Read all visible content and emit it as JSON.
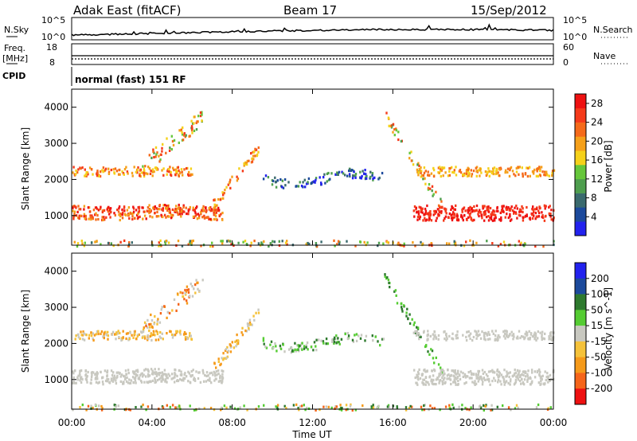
{
  "header": {
    "title": "Adak East (fitACF)",
    "beam": "Beam 17",
    "date": "15/Sep/2012"
  },
  "panels": {
    "nsky_label": "N.Sky",
    "nsky_ticks": [
      "10^5",
      "10^0"
    ],
    "nsearch_label": "N.Search",
    "freq_label": "Freq.",
    "freq_unit": "[MHz]",
    "freq_ticks": [
      "18",
      "8"
    ],
    "nave_label": "Nave",
    "nave_ticks": [
      "60",
      "0"
    ],
    "cpid_label": "CPID",
    "cpid_text": "normal (fast) 151 RF"
  },
  "colors": {
    "power": [
      "#2222ee",
      "#1c4a9c",
      "#3a6a6e",
      "#4e9e4e",
      "#66c73b",
      "#f5d11a",
      "#f5a01a",
      "#f56a1a",
      "#f53a1a",
      "#ee1111"
    ],
    "velocity": [
      "#2222ee",
      "#1c4a9c",
      "#2e7a2e",
      "#55cc33",
      "#c8c8c0",
      "#f5c23a",
      "#f59a1a",
      "#f5651a",
      "#ee1111"
    ]
  },
  "chart_data": [
    {
      "type": "heatmap",
      "name": "power",
      "ylabel": "Slant Range [km]",
      "xlabel": "Time UT",
      "x_ticks": [
        "00:00",
        "04:00",
        "08:00",
        "12:00",
        "16:00",
        "20:00",
        "00:00"
      ],
      "y_ticks": [
        1000,
        2000,
        3000,
        4000
      ],
      "xlim_hours": [
        0,
        24
      ],
      "ylim_km": [
        180,
        4500
      ],
      "colorbar_label": "Power [dB]",
      "colorbar_ticks": [
        4,
        8,
        12,
        16,
        20,
        24,
        28
      ],
      "colorbar_range": [
        0,
        30
      ]
    },
    {
      "type": "heatmap",
      "name": "velocity",
      "ylabel": "Slant Range [km]",
      "xlabel": "Time UT",
      "x_ticks": [
        "00:00",
        "04:00",
        "08:00",
        "12:00",
        "16:00",
        "20:00",
        "00:00"
      ],
      "y_ticks": [
        1000,
        2000,
        3000,
        4000
      ],
      "xlim_hours": [
        0,
        24
      ],
      "ylim_km": [
        180,
        4500
      ],
      "colorbar_label": "Velocity [m s^-1]",
      "colorbar_ticks": [
        "200",
        "100",
        "50",
        "15",
        "-15",
        "-50",
        "-100",
        "-200"
      ]
    }
  ]
}
